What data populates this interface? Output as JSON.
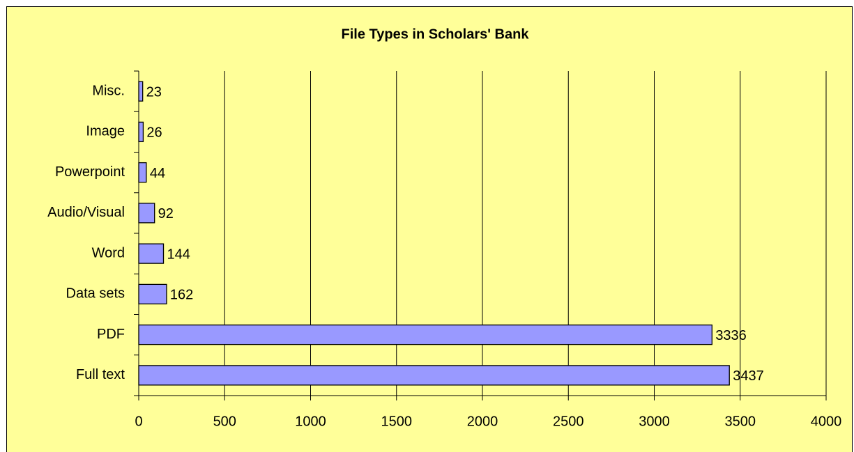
{
  "chart_data": {
    "type": "barh",
    "title": "File Types in Scholars' Bank",
    "categories": [
      "Full text",
      "PDF",
      "Data sets",
      "Word",
      "Audio/Visual",
      "Powerpoint",
      "Image",
      "Misc."
    ],
    "values": [
      3437,
      3336,
      162,
      144,
      92,
      44,
      26,
      23
    ],
    "color": "#9999ff",
    "xlim": [
      0,
      4000
    ],
    "xticks": [
      0,
      500,
      1000,
      1500,
      2000,
      2500,
      3000,
      3500,
      4000
    ],
    "grid": true,
    "background": "#ffff99"
  }
}
